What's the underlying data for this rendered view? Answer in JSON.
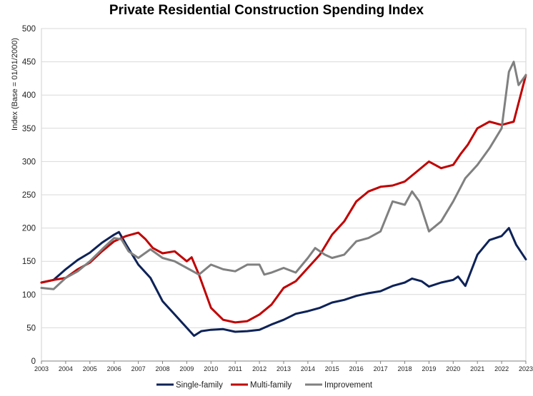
{
  "chart_data": {
    "type": "line",
    "title": "Private Residential Construction Spending Index",
    "xlabel": "",
    "ylabel": "Index  (Base = 01/01/2000)",
    "ylim": [
      0,
      500
    ],
    "yticks": [
      0,
      50,
      100,
      150,
      200,
      250,
      300,
      350,
      400,
      450,
      500
    ],
    "xlim": [
      2003,
      2023
    ],
    "xticks": [
      "2003",
      "2004",
      "2005",
      "2006",
      "2007",
      "2008",
      "2009",
      "2010",
      "2011",
      "2012",
      "2013",
      "2014",
      "2015",
      "2016",
      "2017",
      "2018",
      "2019",
      "2020",
      "2021",
      "2022",
      "2023"
    ],
    "grid": "horizontal",
    "legend_position": "bottom",
    "series": [
      {
        "name": "Single-family",
        "color": "#0d2257",
        "x": [
          2003,
          2003.5,
          2004,
          2004.5,
          2005,
          2005.5,
          2006,
          2006.2,
          2006.5,
          2007,
          2007.5,
          2008,
          2008.5,
          2009,
          2009.3,
          2009.6,
          2010,
          2010.5,
          2011,
          2011.5,
          2012,
          2012.5,
          2013,
          2013.5,
          2014,
          2014.5,
          2015,
          2015.5,
          2016,
          2016.5,
          2017,
          2017.5,
          2018,
          2018.3,
          2018.7,
          2019,
          2019.5,
          2020,
          2020.2,
          2020.5,
          2021,
          2021.5,
          2022,
          2022.3,
          2022.6,
          2023
        ],
        "y": [
          118,
          122,
          138,
          152,
          163,
          178,
          190,
          194,
          175,
          145,
          125,
          90,
          70,
          50,
          38,
          45,
          47,
          48,
          44,
          45,
          47,
          55,
          62,
          71,
          75,
          80,
          88,
          92,
          98,
          102,
          105,
          113,
          118,
          124,
          120,
          112,
          118,
          122,
          127,
          113,
          160,
          182,
          188,
          200,
          175,
          153
        ]
      },
      {
        "name": "Multi-family",
        "color": "#c00000",
        "x": [
          2003,
          2003.5,
          2004,
          2004.5,
          2005,
          2005.5,
          2006,
          2006.5,
          2007,
          2007.3,
          2007.6,
          2008,
          2008.5,
          2009,
          2009.2,
          2009.5,
          2010,
          2010.5,
          2011,
          2011.5,
          2012,
          2012.5,
          2013,
          2013.5,
          2014,
          2014.5,
          2015,
          2015.5,
          2016,
          2016.5,
          2017,
          2017.5,
          2018,
          2018.5,
          2019,
          2019.5,
          2020,
          2020.3,
          2020.6,
          2021,
          2021.5,
          2022,
          2022.5,
          2023
        ],
        "y": [
          118,
          122,
          125,
          138,
          148,
          165,
          180,
          188,
          193,
          183,
          170,
          162,
          165,
          150,
          156,
          130,
          80,
          62,
          58,
          60,
          70,
          85,
          110,
          120,
          140,
          160,
          190,
          210,
          240,
          255,
          262,
          264,
          270,
          285,
          300,
          290,
          295,
          311,
          325,
          350,
          360,
          355,
          360,
          430
        ]
      },
      {
        "name": "Improvement",
        "color": "#808080",
        "x": [
          2003,
          2003.5,
          2004,
          2004.5,
          2005,
          2005.5,
          2006,
          2006.3,
          2006.6,
          2007,
          2007.5,
          2008,
          2008.5,
          2009,
          2009.5,
          2010,
          2010.5,
          2011,
          2011.5,
          2012,
          2012.2,
          2012.5,
          2013,
          2013.5,
          2014,
          2014.3,
          2014.7,
          2015,
          2015.5,
          2016,
          2016.5,
          2017,
          2017.5,
          2018,
          2018.3,
          2018.6,
          2019,
          2019.5,
          2020,
          2020.5,
          2021,
          2021.5,
          2022,
          2022.3,
          2022.5,
          2022.7,
          2023
        ],
        "y": [
          110,
          108,
          125,
          135,
          150,
          168,
          185,
          183,
          165,
          155,
          168,
          155,
          150,
          140,
          130,
          145,
          138,
          135,
          145,
          145,
          130,
          133,
          140,
          133,
          155,
          170,
          160,
          155,
          160,
          180,
          185,
          195,
          240,
          235,
          255,
          240,
          195,
          210,
          240,
          275,
          295,
          320,
          350,
          435,
          450,
          415,
          430
        ]
      }
    ]
  }
}
